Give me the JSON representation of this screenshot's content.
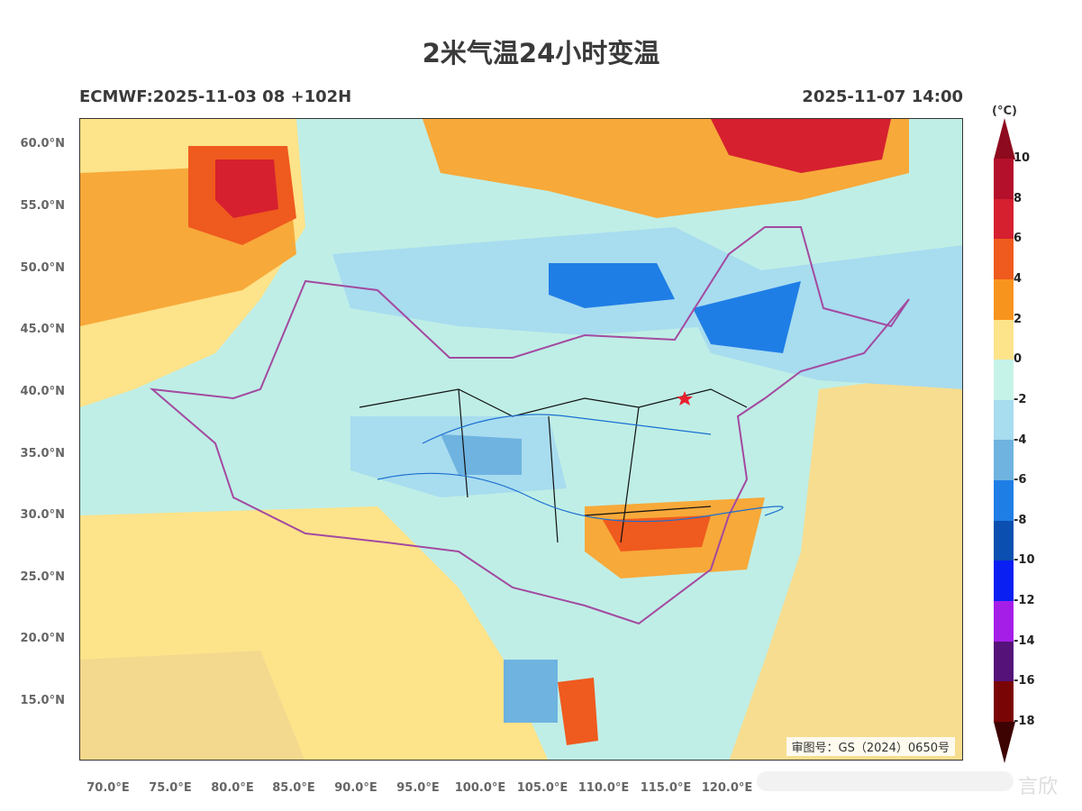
{
  "header": {
    "title": "2米气温24小时变温",
    "model_run": "ECMWF:2025-11-03 08 +102H",
    "valid_time": "2025-11-07 14:00"
  },
  "map": {
    "review_number": "审图号：GS（2024）0650号",
    "lat_ticks": [
      "60.0°N",
      "55.0°N",
      "50.0°N",
      "45.0°N",
      "40.0°N",
      "35.0°N",
      "30.0°N",
      "25.0°N",
      "20.0°N",
      "15.0°N"
    ],
    "lon_ticks": [
      "70.0°E",
      "75.0°E",
      "80.0°E",
      "85.0°E",
      "90.0°E",
      "95.0°E",
      "100.0°E",
      "105.0°E",
      "110.0°E",
      "115.0°E",
      "120.0°E"
    ],
    "marker": "star-icon"
  },
  "colorbar": {
    "unit": "(°C)",
    "labels": [
      "10",
      "8",
      "6",
      "4",
      "2",
      "0",
      "-2",
      "-4",
      "-6",
      "-8",
      "-10",
      "-12",
      "-14",
      "-16",
      "-18"
    ],
    "colors": [
      "#b4102b",
      "#d6202f",
      "#ef5a1e",
      "#f7941e",
      "#fde38a",
      "#c6f3e8",
      "#a8dcef",
      "#6fb3e0",
      "#1f7ee6",
      "#0b4fb0",
      "#0a1ff2",
      "#a51ee8",
      "#55137a",
      "#7a0505"
    ],
    "top_color": "#8e0a1e",
    "bottom_color": "#3d0202"
  },
  "watermark": "言欣"
}
